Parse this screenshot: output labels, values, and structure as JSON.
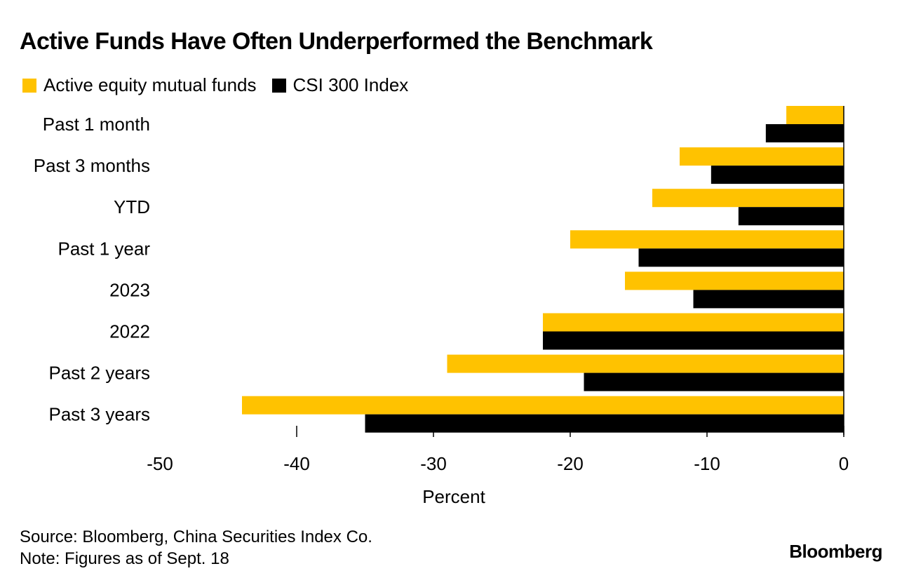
{
  "colors": {
    "active": "#FFC200",
    "index": "#000000"
  },
  "chart_data": {
    "type": "bar",
    "orientation": "horizontal",
    "title": "Active Funds Have Often Underperformed the Benchmark",
    "categories": [
      "Past 1 month",
      "Past 3 months",
      "YTD",
      "Past 1 year",
      "2023",
      "2022",
      "Past 2 years",
      "Past 3 years"
    ],
    "series": [
      {
        "name": "Active equity mutual funds",
        "values": [
          -4.2,
          -12.0,
          -14.0,
          -20.0,
          -16.0,
          -22.0,
          -29.0,
          -44.0
        ]
      },
      {
        "name": "CSI 300 Index",
        "values": [
          -5.7,
          -9.7,
          -7.7,
          -15.0,
          -11.0,
          -22.0,
          -19.0,
          -35.0
        ]
      }
    ],
    "xlabel": "Percent",
    "xlim": [
      -50,
      0
    ],
    "xticks": [
      -50,
      -40,
      -30,
      -20,
      -10,
      0
    ],
    "grid": false,
    "legend_position": "top-left"
  },
  "footer": {
    "source": "Source: Bloomberg, China Securities Index Co.",
    "note": "Note: Figures as of Sept. 18"
  },
  "brand": "Bloomberg"
}
